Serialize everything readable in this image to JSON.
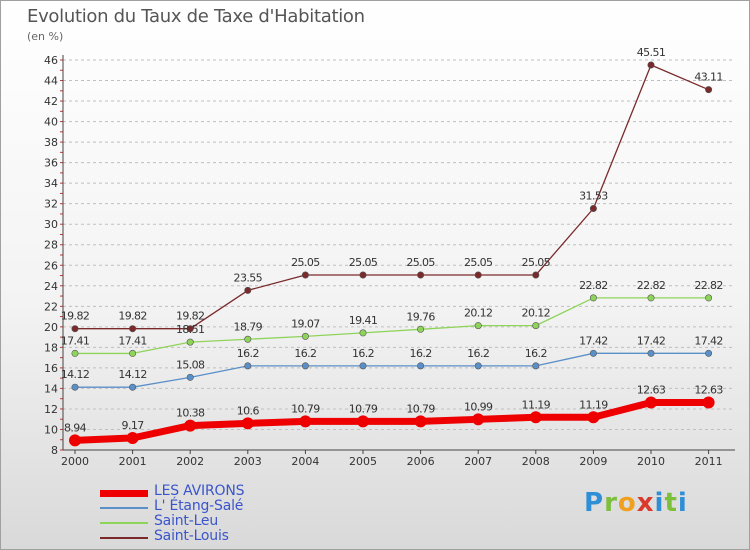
{
  "header": {
    "title": "Evolution du Taux de Taxe d'Habitation",
    "subtitle": "(en %)"
  },
  "logo": {
    "text": "Proxiti"
  },
  "chart_data": {
    "type": "line",
    "title": "Evolution du Taux de Taxe d'Habitation",
    "ylabel": "(en %)",
    "xlabel": "",
    "x": [
      "2000",
      "2001",
      "2002",
      "2003",
      "2004",
      "2005",
      "2006",
      "2007",
      "2008",
      "2009",
      "2010",
      "2011"
    ],
    "ylim": [
      8,
      46
    ],
    "yticks": [
      8,
      10,
      12,
      14,
      16,
      18,
      20,
      22,
      24,
      26,
      28,
      30,
      32,
      34,
      36,
      38,
      40,
      42,
      44,
      46
    ],
    "grid": "horizontal-dashed",
    "legend_position": "bottom-left",
    "series": [
      {
        "name": "LES AVIRONS",
        "color": "#ee0000",
        "emphasis": true,
        "values": [
          8.94,
          9.17,
          10.38,
          10.6,
          10.79,
          10.79,
          10.79,
          10.99,
          11.19,
          11.19,
          12.63,
          12.63
        ],
        "labels": [
          "8.94",
          "9.17",
          "10.38",
          "10.6",
          "10.79",
          "10.79",
          "10.79",
          "10.99",
          "11.19",
          "11.19",
          "12.63",
          "12.63"
        ]
      },
      {
        "name": "L' Étang-Salé",
        "color": "#5b8fc8",
        "values": [
          14.12,
          14.12,
          15.08,
          16.2,
          16.2,
          16.2,
          16.2,
          16.2,
          16.2,
          17.42,
          17.42,
          17.42
        ],
        "labels": [
          "14.12",
          "14.12",
          "15.08",
          "16.2",
          "16.2",
          "16.2",
          "16.2",
          "16.2",
          "16.2",
          "17.42",
          "17.42",
          "17.42"
        ]
      },
      {
        "name": "Saint-Leu",
        "color": "#8fd45a",
        "values": [
          17.41,
          17.41,
          18.51,
          18.79,
          19.07,
          19.41,
          19.76,
          20.12,
          20.12,
          22.82,
          22.82,
          22.82
        ],
        "labels": [
          "17.41",
          "17.41",
          "18.51",
          "18.79",
          "19.07",
          "19.41",
          "19.76",
          "20.12",
          "20.12",
          "22.82",
          "22.82",
          "22.82"
        ]
      },
      {
        "name": "Saint-Louis",
        "color": "#7a2a2a",
        "values": [
          19.82,
          19.82,
          19.82,
          23.55,
          25.05,
          25.05,
          25.05,
          25.05,
          25.05,
          31.53,
          45.51,
          43.11
        ],
        "labels": [
          "19.82",
          "19.82",
          "19.82",
          "23.55",
          "25.05",
          "25.05",
          "25.05",
          "25.05",
          "25.05",
          "31.53",
          "45.51",
          "43.11"
        ]
      }
    ]
  }
}
